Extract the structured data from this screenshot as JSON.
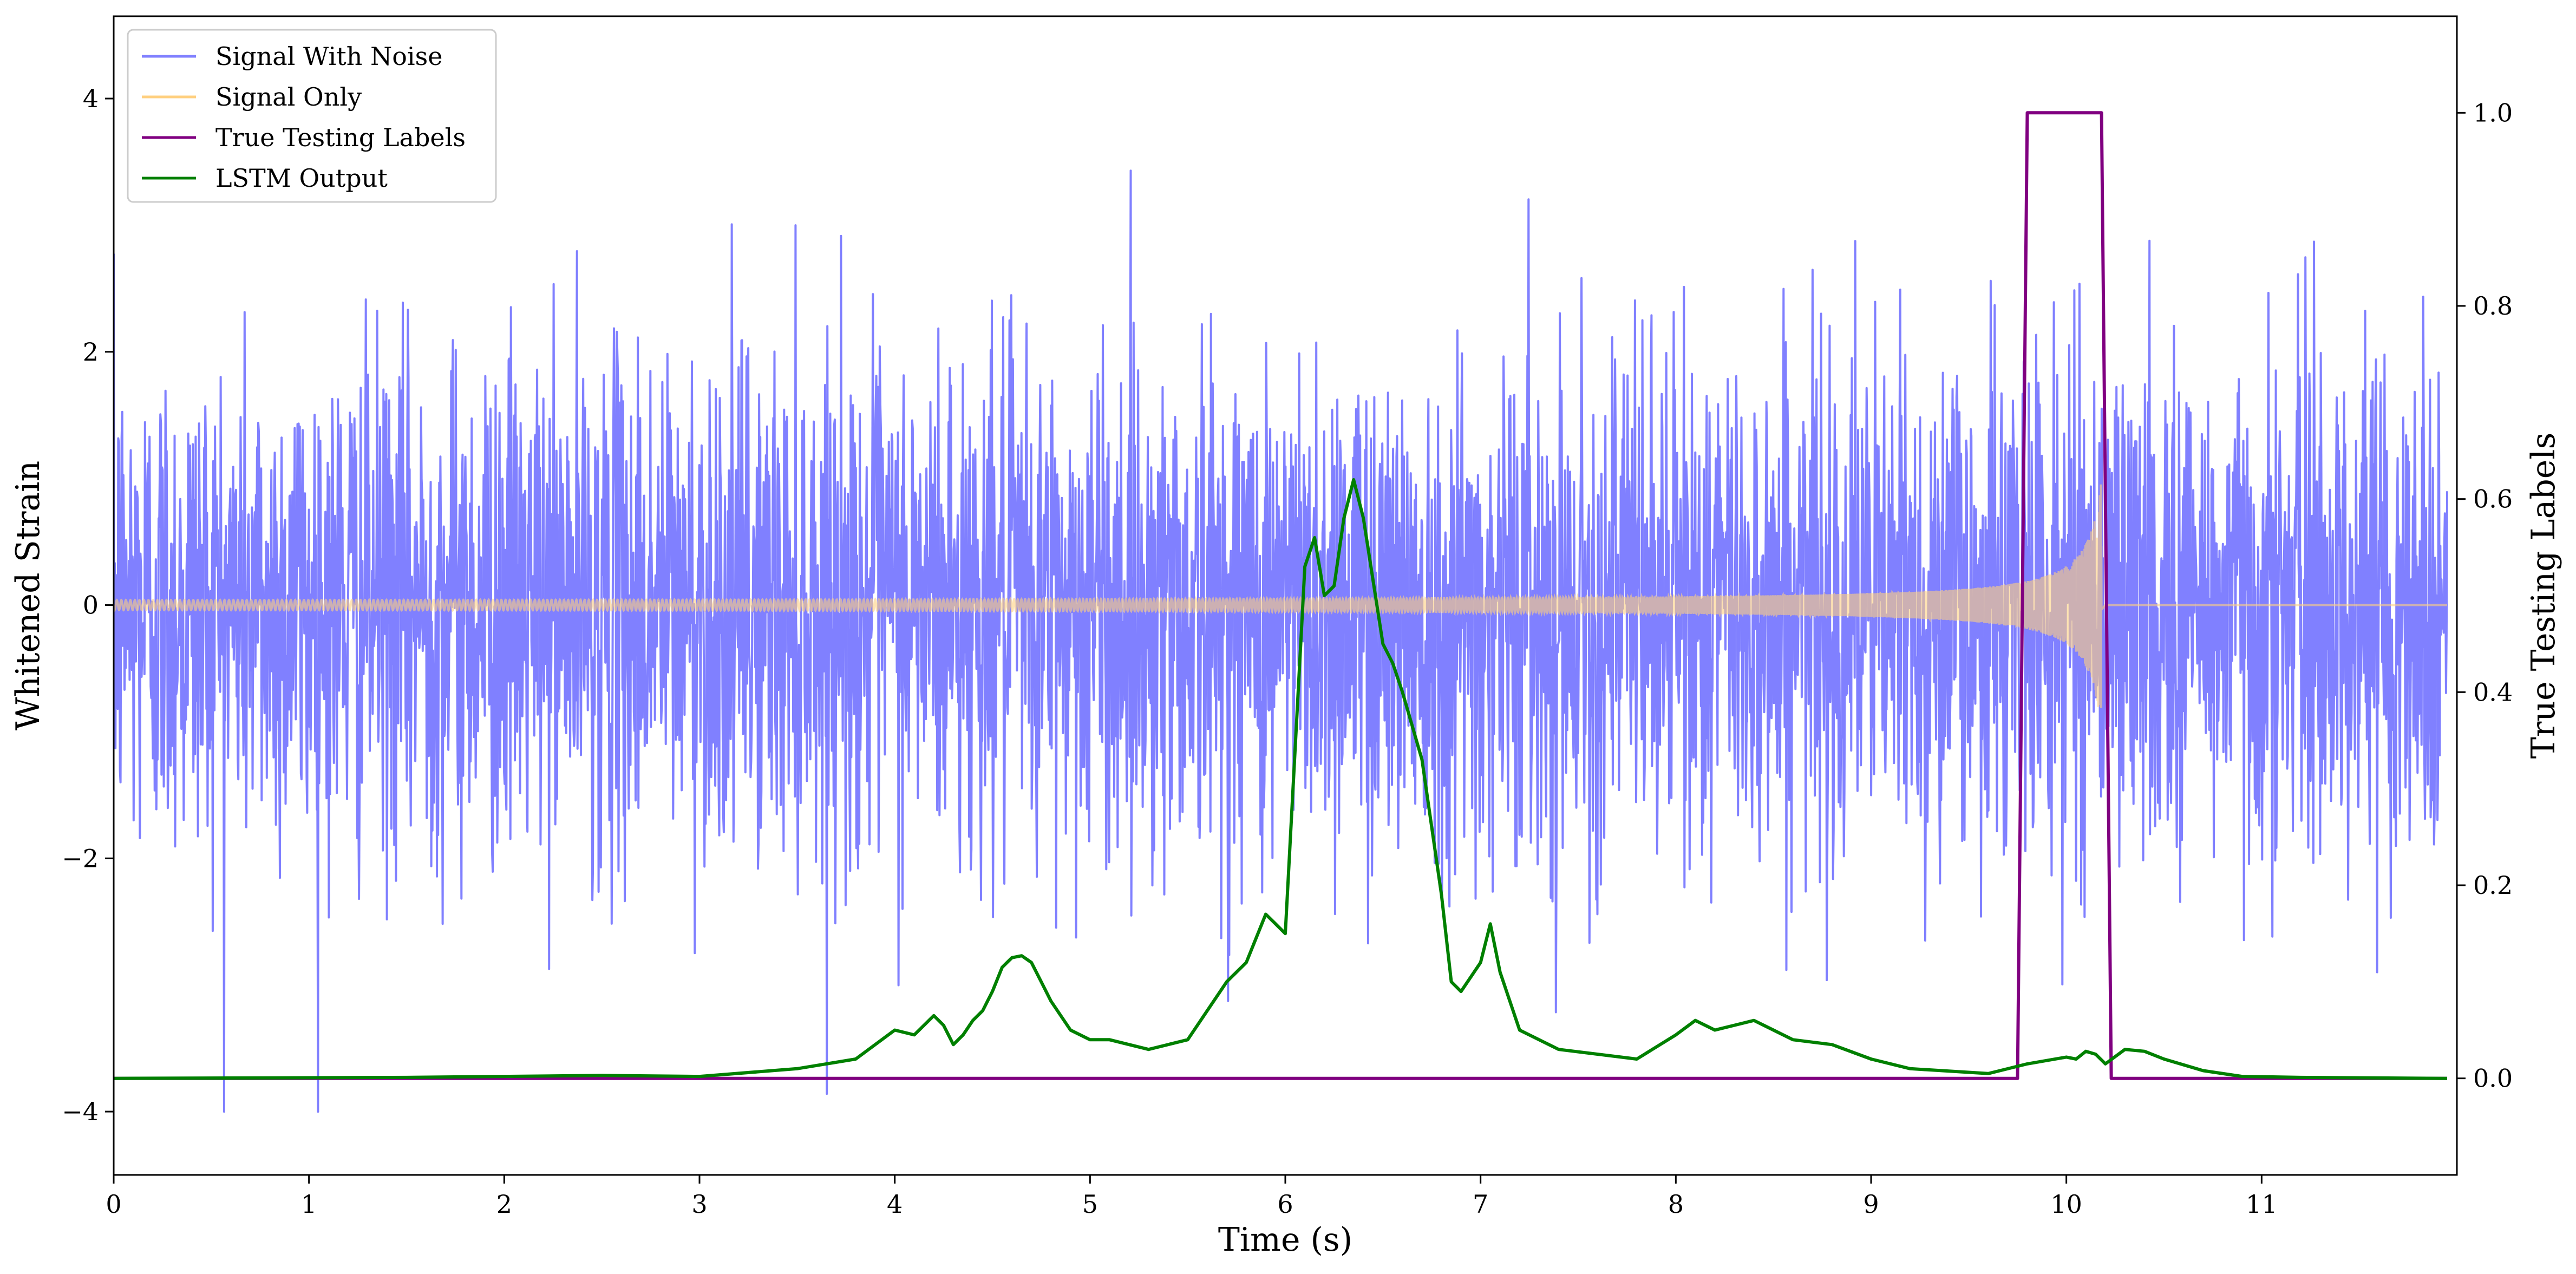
{
  "chart_data": {
    "type": "line",
    "xlabel": "Time (s)",
    "ylabel_left": "Whitened Strain",
    "ylabel_right": "True Testing Labels",
    "xlim": [
      0,
      12
    ],
    "ylim_left": [
      -4.5,
      4.65
    ],
    "ylim_right": [
      -0.1,
      1.1
    ],
    "x_ticks": [
      "0",
      "1",
      "2",
      "3",
      "4",
      "5",
      "6",
      "7",
      "8",
      "9",
      "10",
      "11"
    ],
    "y_ticks_left": [
      "−4",
      "−2",
      "0",
      "2",
      "4"
    ],
    "y_ticks_right": [
      "0.0",
      "0.2",
      "0.4",
      "0.6",
      "0.8",
      "1.0"
    ],
    "grid": false,
    "legend": {
      "placement": "top-left",
      "entries": [
        {
          "label": "Signal With Noise",
          "color": "#8080ff"
        },
        {
          "label": "Signal Only",
          "color": "#ffd080"
        },
        {
          "label": "True Testing Labels",
          "color": "#800080"
        },
        {
          "label": "LSTM Output",
          "color": "#008000"
        }
      ]
    },
    "series": [
      {
        "name": "Signal With Noise",
        "axis": "left",
        "color": "#8080ff",
        "description_values": {
          "mean": 0.0,
          "std": 1.0,
          "max": 4.25,
          "min": -4.0
        }
      },
      {
        "name": "Signal Only",
        "axis": "left",
        "color": "#ffd080",
        "chirp": {
          "start": 0.0,
          "merger": 10.18,
          "end": 12.0,
          "amplitude_at_merger": 1.0
        }
      },
      {
        "name": "True Testing Labels",
        "axis": "right",
        "color": "#800080",
        "x": [
          0.0,
          9.75,
          9.8,
          10.18,
          10.23,
          11.95
        ],
        "y": [
          0.0,
          0.0,
          1.0,
          1.0,
          0.0,
          0.0
        ]
      },
      {
        "name": "LSTM Output",
        "axis": "right",
        "color": "#008000",
        "x": [
          0.0,
          1.5,
          2.5,
          3.0,
          3.5,
          3.8,
          4.0,
          4.1,
          4.2,
          4.25,
          4.3,
          4.35,
          4.4,
          4.45,
          4.5,
          4.55,
          4.6,
          4.65,
          4.7,
          4.75,
          4.8,
          4.9,
          5.0,
          5.1,
          5.3,
          5.5,
          5.7,
          5.8,
          5.9,
          5.95,
          6.0,
          6.1,
          6.15,
          6.2,
          6.25,
          6.3,
          6.35,
          6.4,
          6.5,
          6.55,
          6.6,
          6.7,
          6.8,
          6.85,
          6.9,
          7.0,
          7.05,
          7.1,
          7.2,
          7.4,
          7.8,
          8.0,
          8.1,
          8.2,
          8.3,
          8.4,
          8.5,
          8.6,
          8.8,
          9.0,
          9.2,
          9.6,
          9.8,
          10.0,
          10.05,
          10.1,
          10.15,
          10.2,
          10.3,
          10.4,
          10.5,
          10.7,
          10.9,
          11.2,
          11.95
        ],
        "y": [
          0.0,
          0.001,
          0.003,
          0.002,
          0.01,
          0.02,
          0.05,
          0.045,
          0.065,
          0.055,
          0.035,
          0.045,
          0.06,
          0.07,
          0.09,
          0.115,
          0.125,
          0.127,
          0.12,
          0.1,
          0.08,
          0.05,
          0.04,
          0.04,
          0.03,
          0.04,
          0.1,
          0.12,
          0.17,
          0.16,
          0.15,
          0.53,
          0.56,
          0.5,
          0.51,
          0.58,
          0.62,
          0.58,
          0.45,
          0.43,
          0.4,
          0.33,
          0.19,
          0.1,
          0.09,
          0.12,
          0.16,
          0.11,
          0.05,
          0.03,
          0.02,
          0.045,
          0.06,
          0.05,
          0.055,
          0.06,
          0.05,
          0.04,
          0.035,
          0.02,
          0.01,
          0.005,
          0.015,
          0.022,
          0.02,
          0.028,
          0.025,
          0.015,
          0.03,
          0.028,
          0.02,
          0.008,
          0.002,
          0.001,
          0.0
        ]
      }
    ]
  }
}
